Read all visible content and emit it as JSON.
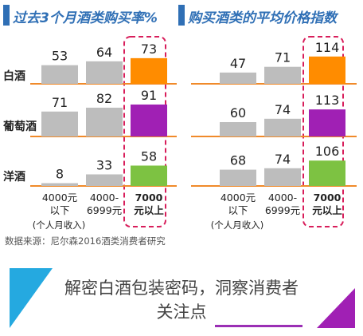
{
  "header": {
    "left_title": "过去3个月酒类购买率%",
    "right_title": "购买酒类的平均价格指数"
  },
  "rows": [
    "白酒",
    "葡萄酒",
    "洋酒"
  ],
  "income_groups": [
    "4000元以下",
    "4000-6999元",
    "7000元以上"
  ],
  "income_note": "(个人月收入)",
  "colors": {
    "gray": "#bdbdbd",
    "baijiu": "#ff8c00",
    "wine": "#a020b4",
    "foreign": "#7dc242",
    "axis_line": "#f08a2a",
    "highlight_box": "#d81e5b",
    "header_blue": "#2f6fb5"
  },
  "chart_data": [
    {
      "type": "bar",
      "title": "过去3个月酒类购买率%",
      "categories": [
        "4000元以下",
        "4000-6999元",
        "7000元以上"
      ],
      "series": [
        {
          "name": "白酒",
          "values": [
            53,
            64,
            73
          ]
        },
        {
          "name": "葡萄酒",
          "values": [
            71,
            82,
            91
          ]
        },
        {
          "name": "洋酒",
          "values": [
            8,
            33,
            58
          ]
        }
      ]
    },
    {
      "type": "bar",
      "title": "购买酒类的平均价格指数",
      "categories": [
        "4000元以下",
        "4000-6999元",
        "7000元以上"
      ],
      "series": [
        {
          "name": "白酒",
          "values": [
            47,
            71,
            114
          ]
        },
        {
          "name": "葡萄酒",
          "values": [
            60,
            74,
            113
          ]
        },
        {
          "name": "洋酒",
          "values": [
            68,
            74,
            106
          ]
        }
      ]
    }
  ],
  "source": "数据来源：尼尔森2016酒类消费者研究",
  "footer": {
    "line1": "解密白酒包装密码，洞察消费者",
    "line2": "关注点"
  }
}
